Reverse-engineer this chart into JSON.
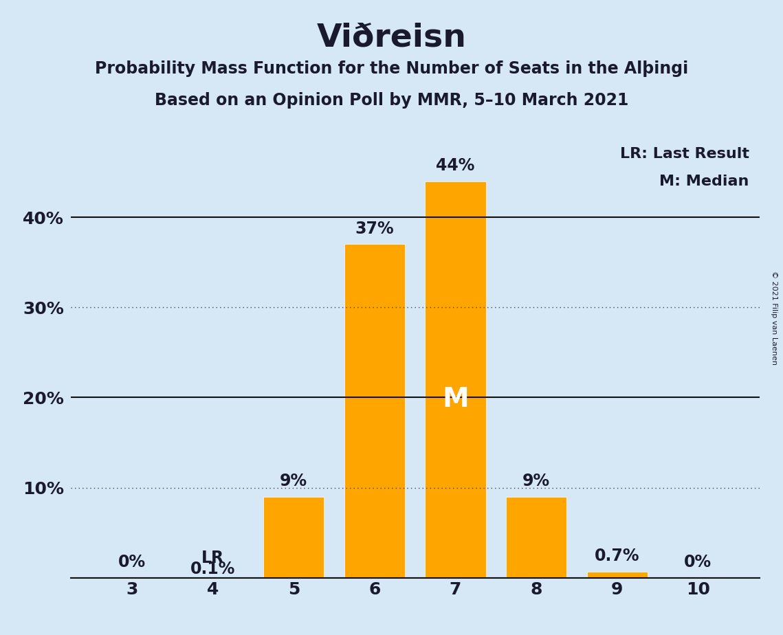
{
  "title": "Viðreisn",
  "subtitle1": "Probability Mass Function for the Number of Seats in the Alþingi",
  "subtitle2": "Based on an Opinion Poll by MMR, 5–10 March 2021",
  "copyright": "© 2021 Filip van Laenen",
  "categories": [
    3,
    4,
    5,
    6,
    7,
    8,
    9,
    10
  ],
  "values": [
    0.0,
    0.1,
    9.0,
    37.0,
    44.0,
    9.0,
    0.7,
    0.0
  ],
  "labels": [
    "0%",
    "0.1%",
    "9%",
    "37%",
    "44%",
    "9%",
    "0.7%",
    "0%"
  ],
  "bar_color": "#FFA500",
  "background_color": "#D6E8F5",
  "text_color": "#1a1a2e",
  "median_seat": 7,
  "last_result_seat": 4,
  "legend_lr": "LR: Last Result",
  "legend_m": "M: Median",
  "ylim": [
    0,
    50
  ],
  "solid_lines": [
    0,
    20,
    40
  ],
  "dotted_lines": [
    10,
    30
  ],
  "bar_width": 0.75,
  "title_fontsize": 34,
  "subtitle_fontsize": 17,
  "tick_fontsize": 18,
  "label_fontsize": 17,
  "legend_fontsize": 16,
  "median_fontsize": 28
}
